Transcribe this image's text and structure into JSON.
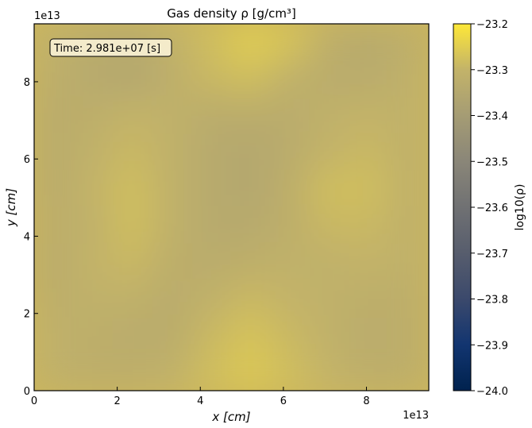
{
  "chart_data": {
    "type": "heatmap",
    "title": "Gas density ρ [g/cm³]",
    "xlabel": "x [cm]",
    "ylabel": "y [cm]",
    "x_offset_label": "1e13",
    "y_offset_label": "1e13",
    "xlim": [
      0,
      9.5
    ],
    "ylim": [
      0,
      9.5
    ],
    "x_ticks": [
      0,
      2,
      4,
      6,
      8
    ],
    "y_ticks": [
      0,
      2,
      4,
      6,
      8
    ],
    "x_tick_labels": [
      "0",
      "2",
      "4",
      "6",
      "8"
    ],
    "y_tick_labels": [
      "0",
      "2",
      "4",
      "6",
      "8"
    ],
    "annotation": "Time: 2.981e+07 [s]",
    "colorbar": {
      "label": "log10(ρ)",
      "colormap": "cividis",
      "range": [
        -24.0,
        -23.2
      ],
      "ticks": [
        -24.0,
        -23.9,
        -23.8,
        -23.7,
        -23.6,
        -23.5,
        -23.4,
        -23.3,
        -23.2
      ],
      "tick_labels": [
        "−24.0",
        "−23.9",
        "−23.8",
        "−23.7",
        "−23.6",
        "−23.5",
        "−23.4",
        "−23.3",
        "−23.2"
      ]
    },
    "grid": false,
    "value_grid_log10_rho": [
      [
        -23.31,
        -23.33,
        -23.34,
        -23.31,
        -23.28,
        -23.25,
        -23.27,
        -23.32,
        -23.34,
        -23.32
      ],
      [
        -23.32,
        -23.34,
        -23.35,
        -23.32,
        -23.29,
        -23.28,
        -23.31,
        -23.33,
        -23.33,
        -23.31
      ],
      [
        -23.33,
        -23.32,
        -23.3,
        -23.31,
        -23.33,
        -23.33,
        -23.33,
        -23.31,
        -23.3,
        -23.31
      ],
      [
        -23.33,
        -23.31,
        -23.29,
        -23.31,
        -23.34,
        -23.35,
        -23.33,
        -23.3,
        -23.29,
        -23.31
      ],
      [
        -23.33,
        -23.3,
        -23.28,
        -23.31,
        -23.34,
        -23.35,
        -23.32,
        -23.28,
        -23.28,
        -23.31
      ],
      [
        -23.32,
        -23.31,
        -23.28,
        -23.31,
        -23.34,
        -23.34,
        -23.32,
        -23.29,
        -23.29,
        -23.31
      ],
      [
        -23.33,
        -23.3,
        -23.29,
        -23.32,
        -23.33,
        -23.32,
        -23.31,
        -23.31,
        -23.3,
        -23.31
      ],
      [
        -23.32,
        -23.31,
        -23.31,
        -23.33,
        -23.31,
        -23.29,
        -23.3,
        -23.31,
        -23.32,
        -23.32
      ],
      [
        -23.31,
        -23.32,
        -23.33,
        -23.33,
        -23.29,
        -23.27,
        -23.29,
        -23.31,
        -23.33,
        -23.32
      ],
      [
        -23.31,
        -23.32,
        -23.32,
        -23.31,
        -23.28,
        -23.26,
        -23.28,
        -23.3,
        -23.32,
        -23.32
      ]
    ]
  }
}
